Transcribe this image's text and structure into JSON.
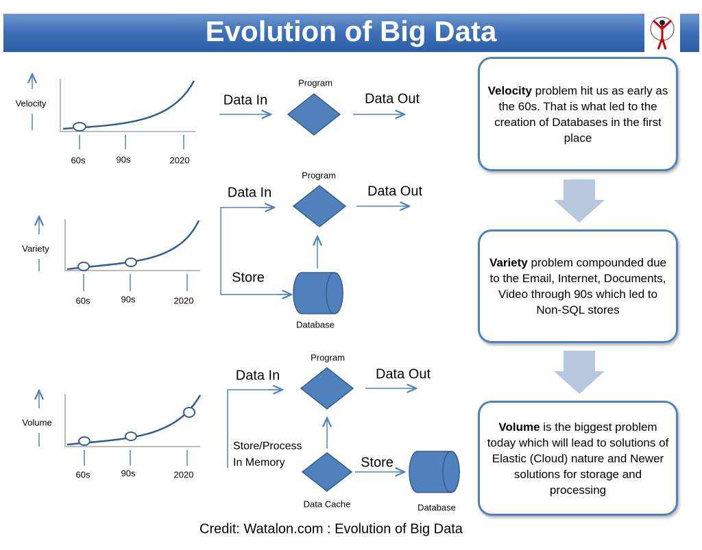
{
  "title": "Evolution of Big Data",
  "panels": [
    {
      "axis_label": "Velocity",
      "ticks": [
        "60s",
        "90s",
        "2020"
      ],
      "flow": {
        "input": "Data In",
        "process": "Program",
        "output": "Data Out"
      }
    },
    {
      "axis_label": "Variety",
      "ticks": [
        "60s",
        "90s",
        "2020"
      ],
      "flow": {
        "input": "Data In",
        "process": "Program",
        "output": "Data Out",
        "store": "Store",
        "database": "Database"
      }
    },
    {
      "axis_label": "Volume",
      "ticks": [
        "60s",
        "90s",
        "2020"
      ],
      "flow": {
        "input": "Data In",
        "process": "Program",
        "output": "Data Out",
        "store_process": [
          "Store/Process",
          "In Memory"
        ],
        "cache": "Data Cache",
        "store": "Store",
        "database": "Database"
      }
    }
  ],
  "notes": [
    {
      "bold": "Velocity",
      "text": "problem hit us as early as the 60s. That is what led to the creation of Databases in the first place"
    },
    {
      "bold": "Variety",
      "text": "problem compounded due to the Email, Internet, Documents, Video through 90s which led to Non-SQL stores"
    },
    {
      "bold": "Volume",
      "text": "is the biggest problem today which will lead to solutions of Elastic (Cloud) nature and Newer solutions for storage and processing"
    }
  ],
  "credit": "Credit: Watalon.com : Evolution of Big Data"
}
